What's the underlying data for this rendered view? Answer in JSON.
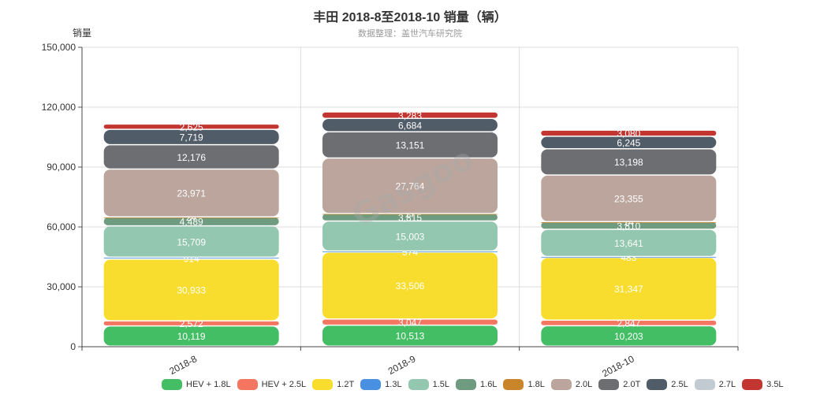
{
  "header": {
    "title": "丰田 2018-8至2018-10 销量（辆）",
    "subtitle": "数据整理：盖世汽车研究院",
    "watermark": "Gasgoo"
  },
  "chart_data": {
    "type": "bar",
    "stacked": true,
    "title": "丰田 2018-8至2018-10 销量（辆）",
    "subtitle": "数据整理：盖世汽车研究院",
    "ylabel": "销量",
    "xlabel": "",
    "ylim": [
      0,
      150000
    ],
    "yticks": [
      0,
      30000,
      60000,
      90000,
      120000,
      150000
    ],
    "ytick_labels": [
      "0",
      "30,000",
      "60,000",
      "90,000",
      "120,000",
      "150,000"
    ],
    "categories": [
      "2018-8",
      "2018-9",
      "2018-10"
    ],
    "grid": true,
    "legend_position": "bottom",
    "series": [
      {
        "name": "HEV + 1.8L",
        "color": "#43be65",
        "values": [
          10119,
          10513,
          10203
        ]
      },
      {
        "name": "HEV + 2.5L",
        "color": "#f47560",
        "values": [
          2572,
          3047,
          2847
        ]
      },
      {
        "name": "1.2T",
        "color": "#f9dd2e",
        "values": [
          30933,
          33506,
          31347
        ]
      },
      {
        "name": "1.3L",
        "color": "#4a90e2",
        "values": [
          914,
          574,
          483
        ]
      },
      {
        "name": "1.5L",
        "color": "#93c7b0",
        "values": [
          15709,
          15003,
          13641
        ]
      },
      {
        "name": "1.6L",
        "color": "#6f9b80",
        "values": [
          4489,
          3815,
          3810
        ]
      },
      {
        "name": "1.8L",
        "color": "#c9852a",
        "values": [
          24,
          17,
          14
        ]
      },
      {
        "name": "2.0L",
        "color": "#bba59c",
        "values": [
          23971,
          27764,
          23355
        ]
      },
      {
        "name": "2.0T",
        "color": "#6c6e72",
        "values": [
          12176,
          13151,
          13198
        ]
      },
      {
        "name": "2.5L",
        "color": "#505d68",
        "values": [
          7719,
          6684,
          6245
        ]
      },
      {
        "name": "2.7L",
        "color": "#c3cbd2",
        "values": [
          0,
          0,
          0
        ]
      },
      {
        "name": "3.5L",
        "color": "#c23531",
        "values": [
          2625,
          3283,
          3080
        ]
      }
    ]
  }
}
